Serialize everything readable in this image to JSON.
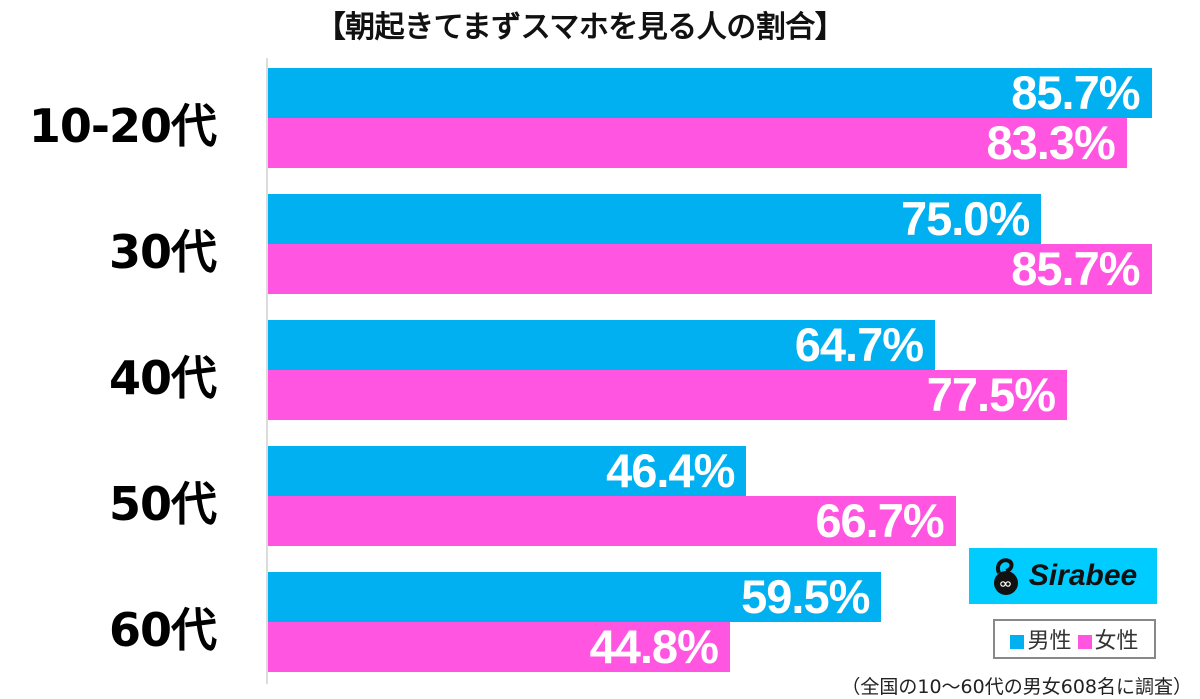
{
  "chart_data": {
    "type": "bar",
    "orientation": "horizontal",
    "title": "【朝起きてまずスマホを見る人の割合】",
    "categories": [
      "10-20代",
      "30代",
      "40代",
      "50代",
      "60代"
    ],
    "series": [
      {
        "name": "男性",
        "color": "#00b0f0",
        "values": [
          85.7,
          75.0,
          64.7,
          46.4,
          59.5
        ],
        "labels": [
          "85.7%",
          "75.0%",
          "64.7%",
          "46.4%",
          "59.5%"
        ]
      },
      {
        "name": "女性",
        "color": "#ff55e0",
        "values": [
          83.3,
          85.7,
          77.5,
          66.7,
          44.8
        ],
        "labels": [
          "83.3%",
          "85.7%",
          "77.5%",
          "66.7%",
          "44.8%"
        ]
      }
    ],
    "xlabel": "",
    "ylabel": "",
    "xlim": [
      0,
      100
    ],
    "grid": false,
    "legend_position": "bottom-right",
    "unit": "%"
  },
  "logo": {
    "text": "Sirabee",
    "bg": "#00ccff"
  },
  "legend": {
    "male": "男性",
    "female": "女性"
  },
  "note": "（全国の10〜60代の男女608名に調査）"
}
